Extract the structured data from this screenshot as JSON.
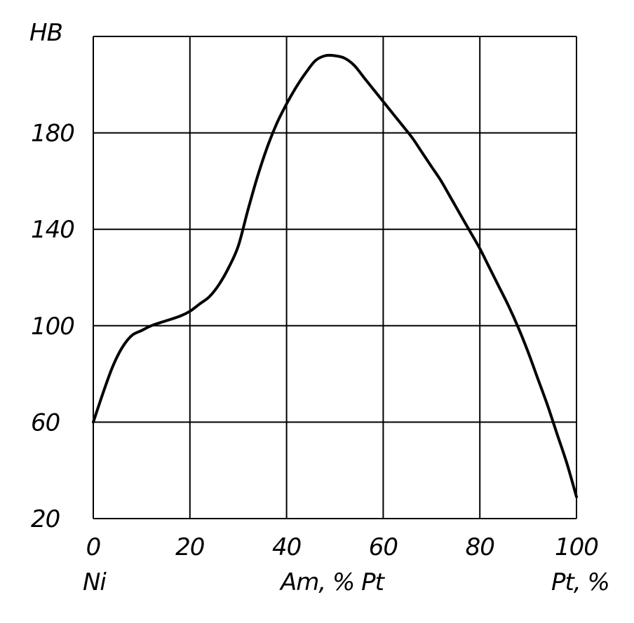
{
  "chart_data": {
    "type": "line",
    "ylabel": "HB",
    "x_ticks": [
      "0",
      "20",
      "40",
      "60",
      "80",
      "100"
    ],
    "y_ticks": [
      "20",
      "60",
      "100",
      "140",
      "180"
    ],
    "xlim": [
      0,
      100
    ],
    "ylim": [
      20,
      220
    ],
    "grid": true,
    "bottom_labels": {
      "left": "Ni",
      "center": "Am, % Pt",
      "right": "Pt, %"
    },
    "series": [
      {
        "x": [
          0,
          2,
          4,
          6,
          8,
          10,
          12,
          15,
          18,
          20,
          22,
          24,
          26,
          28,
          30,
          32,
          34,
          36,
          38,
          40,
          42,
          44,
          46,
          48,
          50,
          52,
          54,
          56,
          58,
          60,
          62,
          64,
          66,
          68,
          70,
          72,
          74,
          76,
          78,
          80,
          82,
          84,
          86,
          88,
          90,
          92,
          94,
          96,
          98,
          100
        ],
        "y": [
          60,
          72,
          83,
          91,
          96,
          98,
          100,
          102,
          104,
          106,
          109,
          112,
          117,
          124,
          133,
          148,
          162,
          174,
          184,
          192,
          199,
          205,
          210,
          212,
          212,
          211,
          208,
          203,
          198,
          193,
          188,
          183,
          178,
          172,
          166,
          160,
          153,
          146,
          139,
          132,
          124,
          116,
          108,
          99,
          89,
          78,
          67,
          55,
          43,
          29
        ]
      }
    ],
    "line_color": "#000000",
    "grid_color": "#000000"
  }
}
